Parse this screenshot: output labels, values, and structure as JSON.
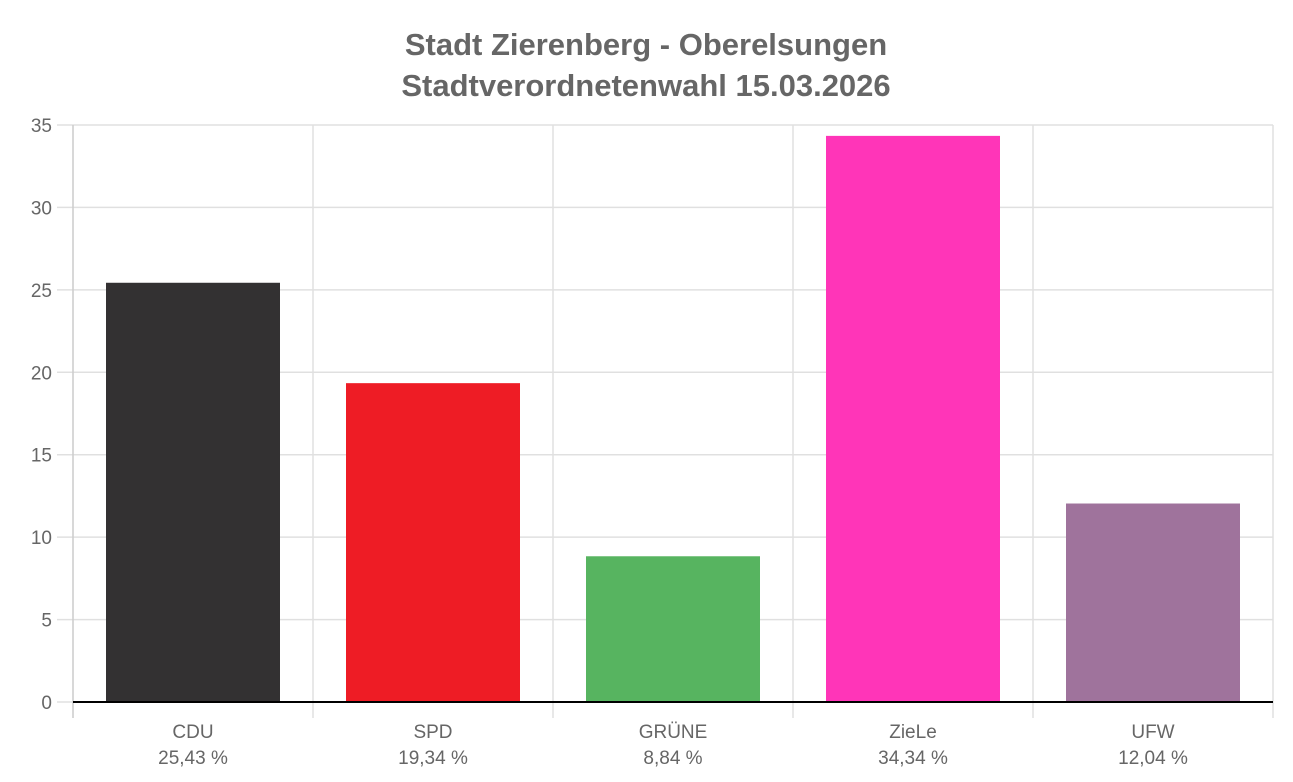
{
  "chart_data": {
    "type": "bar",
    "title": [
      "Stadt Zierenberg - Oberelsungen",
      "Stadtverordnetenwahl 15.03.2026"
    ],
    "categories": [
      "CDU",
      "SPD",
      "GRÜNE",
      "ZieLe",
      "UFW"
    ],
    "value_labels": [
      "25,43 %",
      "19,34 %",
      "8,84 %",
      "34,34 %",
      "12,04 %"
    ],
    "values": [
      25.43,
      19.34,
      8.84,
      34.34,
      12.04
    ],
    "colors": [
      "#333132",
      "#ee1c25",
      "#57b460",
      "#ff35b8",
      "#9f739c"
    ],
    "ylim": [
      0,
      35
    ],
    "yticks": [
      0,
      5,
      10,
      15,
      20,
      25,
      30,
      35
    ],
    "grid": true,
    "xlabel": "",
    "ylabel": ""
  }
}
